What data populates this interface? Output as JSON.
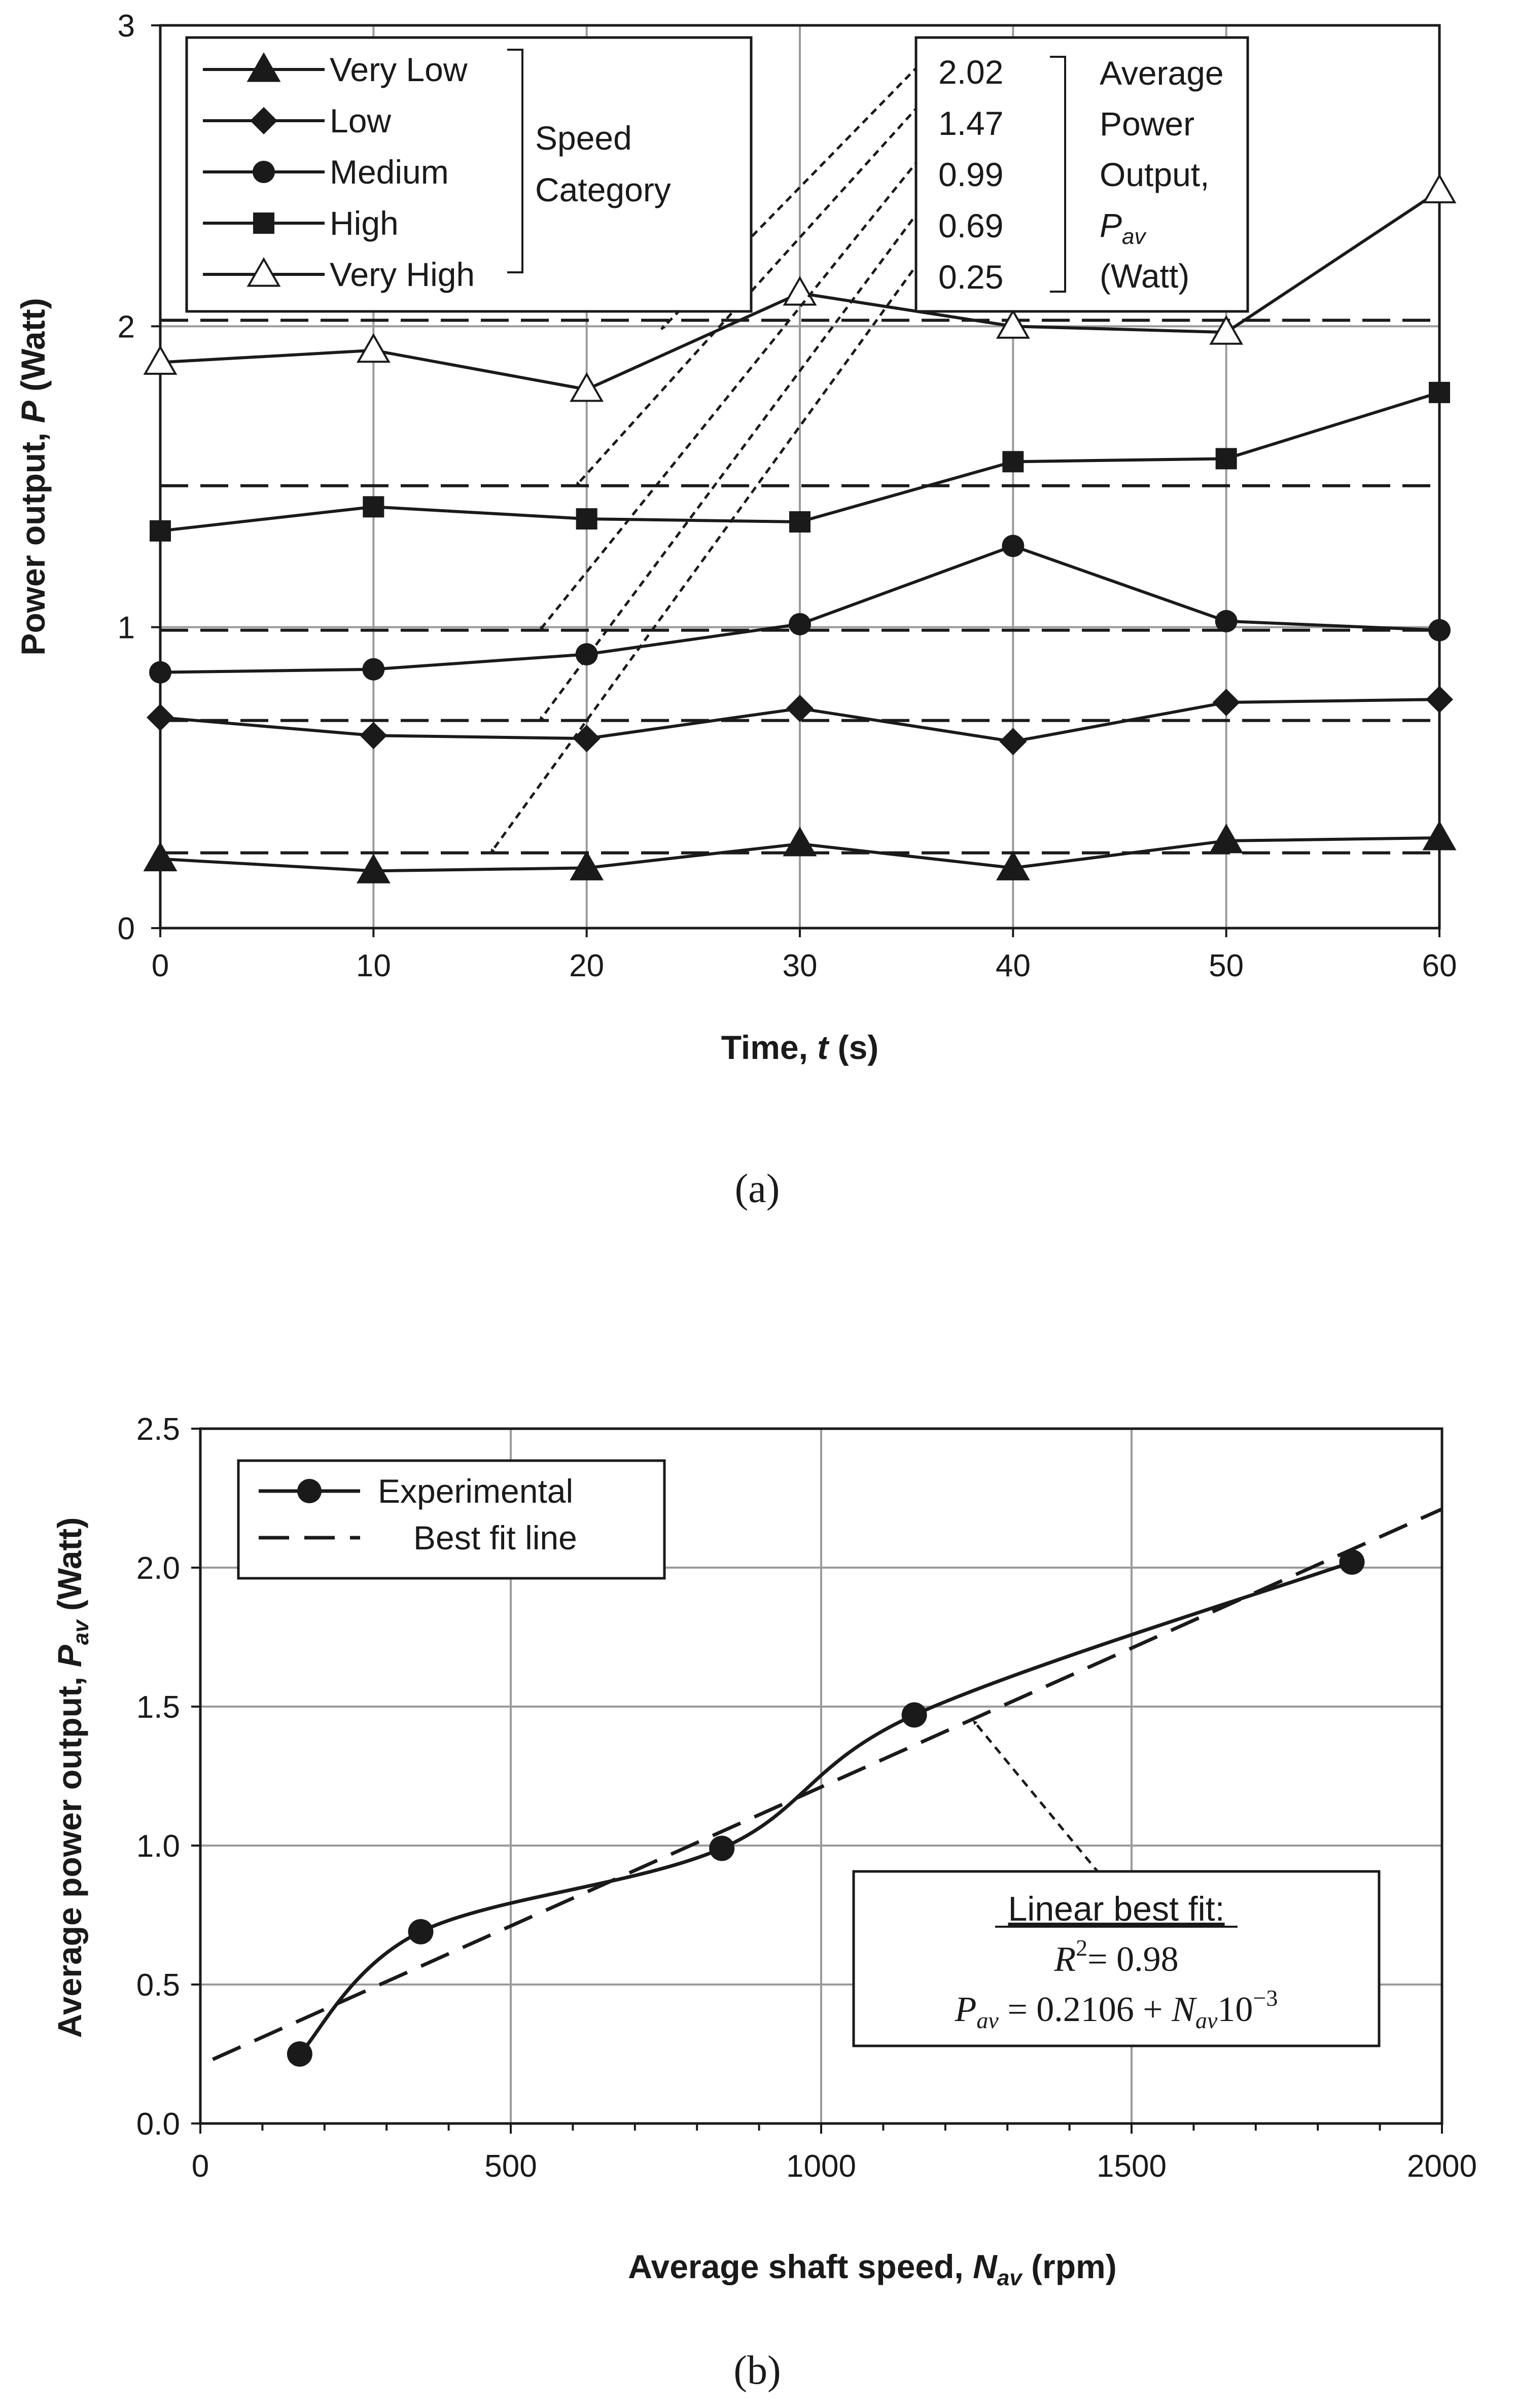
{
  "chart_data": [
    {
      "type": "line",
      "panel_label": "(a)",
      "xlabel_parts": [
        "Time, ",
        "t",
        " (s)"
      ],
      "ylabel_parts": [
        "Power output, ",
        "P",
        " (Watt)"
      ],
      "xlim": [
        0,
        60
      ],
      "ylim": [
        0,
        3
      ],
      "xticks": [
        0,
        10,
        20,
        30,
        40,
        50,
        60
      ],
      "yticks": [
        0,
        1,
        2,
        3
      ],
      "x": [
        0,
        10,
        20,
        30,
        40,
        50,
        60
      ],
      "grid": true,
      "series": [
        {
          "name": "Very Low",
          "marker": "triangle-filled",
          "values": [
            0.23,
            0.19,
            0.2,
            0.28,
            0.2,
            0.29,
            0.3
          ],
          "average": 0.25,
          "arrow_tip": [
            15.5,
            0.25
          ]
        },
        {
          "name": "Low",
          "marker": "diamond-filled",
          "values": [
            0.7,
            0.64,
            0.63,
            0.73,
            0.62,
            0.75,
            0.76
          ],
          "average": 0.69,
          "arrow_tip": [
            17.8,
            0.69
          ]
        },
        {
          "name": "Medium",
          "marker": "circle-filled",
          "values": [
            0.85,
            0.86,
            0.91,
            1.01,
            1.27,
            1.02,
            0.99
          ],
          "average": 0.99,
          "arrow_tip": [
            17.8,
            0.99
          ]
        },
        {
          "name": "High",
          "marker": "square-filled",
          "values": [
            1.32,
            1.4,
            1.36,
            1.35,
            1.55,
            1.56,
            1.78
          ],
          "average": 1.47,
          "arrow_tip": [
            19.5,
            1.47
          ]
        },
        {
          "name": "Very High",
          "marker": "triangle-open",
          "values": [
            1.88,
            1.92,
            1.79,
            2.11,
            2.0,
            1.98,
            2.45
          ],
          "average": 2.02,
          "arrow_tip": [
            23.5,
            1.99
          ]
        }
      ],
      "legend_group_label": [
        "Speed",
        "Category"
      ],
      "average_values_text": [
        "2.02",
        "1.47",
        "0.99",
        "0.69",
        "0.25"
      ],
      "average_label_lines": [
        "Average",
        "Power",
        "Output,"
      ],
      "average_symbol": {
        "base": "P",
        "sub": "av"
      },
      "average_unit": "(Watt)"
    },
    {
      "type": "scatter",
      "panel_label": "(b)",
      "xlabel_parts": [
        "Average shaft speed, ",
        "N",
        "av",
        " (rpm)"
      ],
      "ylabel_parts": [
        "Average power output, ",
        "P",
        "av",
        " (Watt)"
      ],
      "xlim": [
        0,
        2000
      ],
      "ylim": [
        0,
        2.5
      ],
      "xticks": [
        0,
        500,
        1000,
        1500,
        2000
      ],
      "yticks": [
        "0.0",
        "0.5",
        "1.0",
        "1.5",
        "2.0",
        "2.5"
      ],
      "grid": true,
      "series": [
        {
          "name": "Experimental",
          "x": [
            160,
            355,
            840,
            1150,
            1855
          ],
          "y": [
            0.25,
            0.69,
            0.99,
            1.47,
            2.02
          ]
        }
      ],
      "fit_line": {
        "name": "Best fit line",
        "intercept": 0.2106,
        "slope": 0.001
      },
      "fit_box": {
        "title": "Linear best fit:",
        "r2_text": "= 0.98",
        "eq_lhs": "P",
        "eq_lhs_sub": "av",
        "eq_mid": " = 0.2106 + ",
        "eq_n": "N",
        "eq_n_sub": "av",
        "eq_pow": "10",
        "eq_exp": "−3",
        "arrow_tip": [
          1245,
          1.45
        ]
      }
    }
  ]
}
